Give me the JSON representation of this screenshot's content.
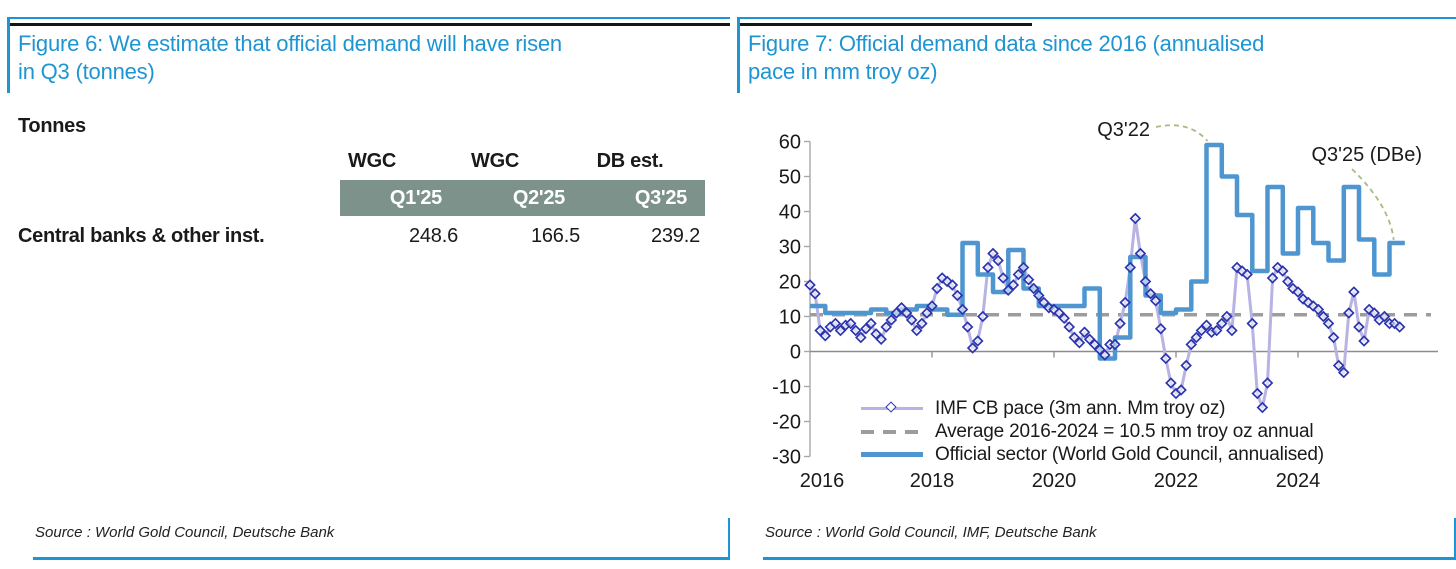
{
  "figure6": {
    "title_line1": "Figure 6: We estimate that official demand will have risen",
    "title_line2": "in Q3 (tonnes)",
    "unit_label": "Tonnes",
    "table": {
      "col_groups": [
        "WGC",
        "WGC",
        "DB est."
      ],
      "col_headers": [
        "Q1'25",
        "Q2'25",
        "Q3'25"
      ],
      "row_label": "Central banks & other inst.",
      "values": [
        "248.6",
        "166.5",
        "239.2"
      ]
    },
    "source": "Source : World Gold Council, Deutsche Bank"
  },
  "figure7": {
    "title_line1": "Figure 7: Official demand data since 2016 (annualised",
    "title_line2": "pace in mm troy oz)",
    "source": "Source : World Gold Council, IMF, Deutsche Bank"
  },
  "chart_data": {
    "type": "line",
    "title": "Official demand data since 2016 (annualised pace in mm troy oz)",
    "ylim": [
      -30,
      60
    ],
    "yticks": [
      60,
      50,
      40,
      30,
      20,
      10,
      0,
      -10,
      -20,
      -30
    ],
    "xticks": [
      2016,
      2018,
      2020,
      2022,
      2024
    ],
    "x_range": [
      2016,
      2025.75
    ],
    "grid": false,
    "legend_position": "lower-left",
    "average_line": {
      "label": "Average 2016-2024 = 10.5 mm troy oz annual",
      "value": 10.5
    },
    "series": [
      {
        "name": "IMF CB pace (3m ann. Mm troy oz)",
        "type": "line-diamond",
        "start": 2016.0,
        "step_years": 0.08333,
        "values": [
          19,
          16.5,
          6,
          4.5,
          7,
          8,
          6,
          7.5,
          8,
          6,
          4,
          6.5,
          8,
          5,
          3.5,
          7,
          9,
          11,
          12.5,
          11,
          9,
          6,
          8,
          11,
          13,
          18,
          21,
          20,
          19,
          16,
          12,
          7,
          1,
          3,
          10,
          24,
          28,
          26,
          21,
          17.5,
          19,
          22,
          24,
          20.5,
          18,
          16,
          14,
          12.5,
          12,
          11,
          9.5,
          7,
          4,
          2.5,
          5.5,
          3.5,
          2,
          0.5,
          -1,
          2,
          2,
          8,
          14,
          24,
          38,
          28,
          20,
          16.5,
          14.5,
          6.5,
          -2,
          -9,
          -12,
          -11,
          -4,
          2,
          4,
          6,
          7.5,
          5.5,
          6,
          8,
          10,
          6,
          24,
          23,
          22,
          8,
          -12,
          -16,
          -9,
          21,
          24,
          23,
          20,
          18,
          17,
          15,
          14,
          13,
          12,
          10,
          8,
          4,
          -4,
          -6,
          11,
          17,
          7,
          3,
          12,
          11,
          9,
          10,
          8,
          8,
          7
        ]
      },
      {
        "name": "Official sector (World Gold Council, annualised)",
        "type": "step",
        "start": 2016.0,
        "step_years": 0.25,
        "values": [
          13,
          11,
          11,
          11,
          12,
          11,
          12,
          13,
          12,
          10.5,
          31,
          22,
          17,
          29,
          18,
          13,
          13,
          13,
          18,
          -2,
          4,
          27,
          16,
          11,
          12,
          20,
          59,
          50,
          39,
          23,
          47,
          28,
          41,
          31,
          26,
          47,
          32,
          22,
          31
        ]
      }
    ],
    "annotations": [
      {
        "text": "Q3'22",
        "x": 2022.55,
        "y": 59
      },
      {
        "text": "Q3'25 (DBe)",
        "x": 2025.7,
        "y": 31
      }
    ]
  },
  "colors": {
    "accent_blue": "#1e95d3",
    "wgc_line": "#4f96d1",
    "imf_line": "#b7b3e3",
    "imf_marker": "#2c35ad",
    "avg_gray": "#9c9c9c",
    "zero_line": "#8c8c8c",
    "axis_gray": "#a8a8a8",
    "band_green": "#7c928a",
    "leader_green": "#a9ba7f",
    "text": "#1a1a1a"
  }
}
